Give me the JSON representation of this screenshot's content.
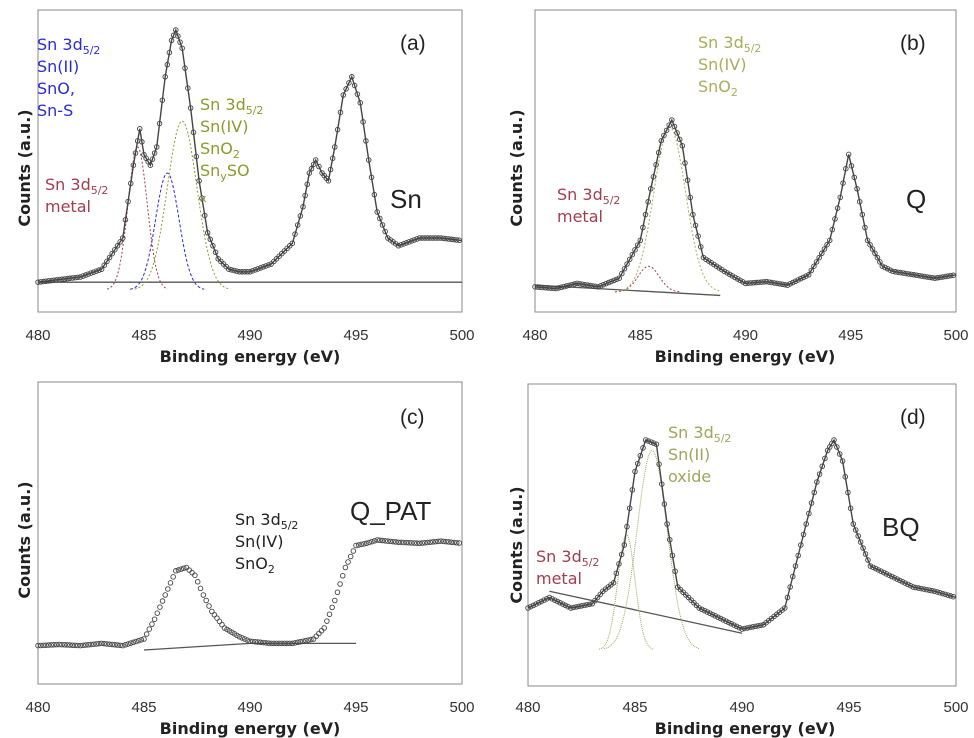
{
  "colors": {
    "metal": "#a23d4e",
    "sn2": "#2b2bd6",
    "sn4": "#8c9a2c",
    "sn4_light": "#a8ad5a",
    "sn2_oxide_light": "#9ea65c",
    "black": "#222222",
    "marker_edge": "#444444",
    "background_line": "#555555"
  },
  "chart_data": [
    {
      "id": "a",
      "type": "line",
      "panel_label": "(a)",
      "sample": "Sn",
      "xlabel": "Binding energy (eV)",
      "ylabel": "Counts (a.u.)",
      "xlim": [
        480,
        500
      ],
      "xticks": [
        "480",
        "485",
        "490",
        "495",
        "500"
      ],
      "grid": false,
      "series": [
        {
          "role": "measured",
          "x": [
            480,
            481,
            482,
            483,
            484,
            484.5,
            484.8,
            485.0,
            485.3,
            485.6,
            486.0,
            486.3,
            486.5,
            486.8,
            487.2,
            487.6,
            488.0,
            488.5,
            489.0,
            489.5,
            490,
            491,
            492,
            492.5,
            492.8,
            493.1,
            493.4,
            493.7,
            494.0,
            494.4,
            494.8,
            495.2,
            495.6,
            496.0,
            496.5,
            497,
            498,
            499,
            500
          ],
          "y": [
            0.03,
            0.04,
            0.05,
            0.08,
            0.2,
            0.48,
            0.62,
            0.52,
            0.48,
            0.55,
            0.82,
            0.96,
            1.0,
            0.93,
            0.7,
            0.42,
            0.22,
            0.12,
            0.08,
            0.07,
            0.07,
            0.1,
            0.18,
            0.32,
            0.45,
            0.5,
            0.45,
            0.42,
            0.55,
            0.75,
            0.82,
            0.72,
            0.5,
            0.3,
            0.2,
            0.17,
            0.2,
            0.2,
            0.19
          ]
        },
        {
          "role": "component",
          "label": "Sn 3d5/2 metal",
          "center": 484.7,
          "height": 0.55,
          "width": 0.45
        },
        {
          "role": "component",
          "label": "Sn 3d5/2 Sn(II)",
          "center": 486.1,
          "height": 0.45,
          "width": 0.55
        },
        {
          "role": "component",
          "label": "Sn 3d5/2 Sn(IV)",
          "center": 486.8,
          "height": 0.65,
          "width": 0.7
        },
        {
          "role": "background",
          "x": [
            480,
            500
          ],
          "y": [
            0.03,
            0.03
          ]
        }
      ],
      "annotations": [
        {
          "color": "sn2",
          "lines": [
            [
              "Sn 3d",
              "5/2",
              ""
            ],
            [
              "Sn(II)",
              "",
              ""
            ],
            [
              "SnO,",
              "",
              ""
            ],
            [
              "Sn-S",
              "",
              ""
            ]
          ]
        },
        {
          "color": "sn4",
          "lines": [
            [
              "Sn 3d",
              "5/2",
              ""
            ],
            [
              "Sn(IV)",
              "",
              ""
            ],
            [
              "SnO",
              "2",
              ""
            ],
            [
              "Sn",
              "y",
              "SO"
            ],
            [
              "",
              "x",
              ""
            ]
          ]
        },
        {
          "color": "metal",
          "lines": [
            [
              "Sn 3d",
              "5/2",
              ""
            ],
            [
              "metal",
              "",
              ""
            ]
          ]
        }
      ]
    },
    {
      "id": "b",
      "type": "line",
      "panel_label": "(b)",
      "sample": "Q",
      "xlabel": "Binding energy (eV)",
      "ylabel": "Counts (a.u.)",
      "xlim": [
        480,
        500
      ],
      "xticks": [
        "480",
        "485",
        "490",
        "495",
        "500"
      ],
      "grid": false,
      "series": [
        {
          "role": "measured",
          "x": [
            480,
            481,
            482,
            483,
            484,
            485,
            485.5,
            486.0,
            486.5,
            487.0,
            487.5,
            488,
            489,
            490,
            491,
            492,
            493,
            494,
            494.5,
            494.9,
            495.3,
            495.8,
            496.5,
            497,
            498,
            499,
            500
          ],
          "y": [
            0.03,
            0.02,
            0.05,
            0.03,
            0.08,
            0.3,
            0.6,
            0.88,
            1.0,
            0.85,
            0.45,
            0.2,
            0.12,
            0.05,
            0.06,
            0.04,
            0.1,
            0.3,
            0.55,
            0.8,
            0.6,
            0.3,
            0.15,
            0.12,
            0.1,
            0.08,
            0.1
          ]
        },
        {
          "role": "component",
          "label": "Sn 3d5/2 metal",
          "center": 485.4,
          "height": 0.15,
          "width": 0.5
        },
        {
          "role": "component",
          "label": "Sn 3d5/2 Sn(IV)",
          "center": 486.4,
          "height": 0.96,
          "width": 0.75
        },
        {
          "role": "background",
          "x": [
            480,
            488.8
          ],
          "y": [
            0.04,
            -0.02
          ]
        }
      ],
      "annotations": [
        {
          "color": "sn4_light",
          "lines": [
            [
              "Sn 3d",
              "5/2",
              ""
            ],
            [
              "Sn(IV)",
              "",
              ""
            ],
            [
              "SnO",
              "2",
              ""
            ]
          ]
        },
        {
          "color": "metal",
          "lines": [
            [
              "Sn 3d",
              "5/2",
              ""
            ],
            [
              "metal",
              "",
              ""
            ]
          ]
        }
      ]
    },
    {
      "id": "c",
      "type": "scatter",
      "panel_label": "(c)",
      "sample": "Q_PAT",
      "xlabel": "Binding energy (eV)",
      "ylabel": "Counts (a.u.)",
      "xlim": [
        480,
        500
      ],
      "xticks": [
        "480",
        "485",
        "490",
        "495",
        "500"
      ],
      "grid": false,
      "series": [
        {
          "role": "measured",
          "x": [
            480,
            481,
            482,
            483,
            484,
            485,
            485.5,
            486.0,
            486.5,
            487.0,
            487.4,
            487.8,
            488.2,
            488.8,
            489.5,
            490,
            491,
            492,
            493,
            493.5,
            494,
            494.5,
            495,
            495.5,
            496,
            497,
            498,
            499,
            500
          ],
          "y": [
            0.04,
            0.05,
            0.04,
            0.06,
            0.04,
            0.1,
            0.28,
            0.5,
            0.72,
            0.75,
            0.68,
            0.5,
            0.35,
            0.2,
            0.12,
            0.08,
            0.06,
            0.06,
            0.1,
            0.2,
            0.45,
            0.75,
            0.95,
            0.97,
            1.0,
            0.98,
            0.97,
            0.99,
            0.97
          ]
        },
        {
          "role": "background",
          "x": [
            485,
            490,
            495
          ],
          "y": [
            0.0,
            0.06,
            0.06
          ]
        }
      ],
      "annotations": [
        {
          "color": "black",
          "lines": [
            [
              "Sn 3d",
              "5/2",
              ""
            ],
            [
              "Sn(IV)",
              "",
              ""
            ],
            [
              "SnO",
              "2",
              ""
            ]
          ]
        }
      ]
    },
    {
      "id": "d",
      "type": "line",
      "panel_label": "(d)",
      "sample": "BQ",
      "xlabel": "Binding energy (eV)",
      "ylabel": "Counts (a.u.)",
      "xlim": [
        480,
        500
      ],
      "xticks": [
        "480",
        "485",
        "490",
        "495",
        "500"
      ],
      "grid": false,
      "series": [
        {
          "role": "measured",
          "x": [
            480,
            481,
            482,
            483,
            483.5,
            484,
            484.5,
            485.0,
            485.5,
            486.0,
            486.5,
            487.0,
            487.5,
            488,
            489,
            490,
            491,
            492,
            492.5,
            493,
            493.5,
            494.0,
            494.3,
            494.7,
            495.2,
            496,
            497,
            498,
            499,
            500
          ],
          "y": [
            0.2,
            0.25,
            0.2,
            0.22,
            0.28,
            0.32,
            0.5,
            0.85,
            1.0,
            0.98,
            0.6,
            0.3,
            0.25,
            0.2,
            0.15,
            0.1,
            0.12,
            0.2,
            0.4,
            0.6,
            0.8,
            0.95,
            1.0,
            0.9,
            0.6,
            0.4,
            0.35,
            0.3,
            0.28,
            0.25
          ]
        },
        {
          "role": "component",
          "label": "Sn 3d5/2 metal",
          "center": 484.6,
          "height": 0.55,
          "width": 0.4
        },
        {
          "role": "component",
          "label": "Sn 3d5/2 Sn(II)",
          "center": 485.8,
          "height": 0.95,
          "width": 0.7
        },
        {
          "role": "background",
          "x": [
            481,
            490
          ],
          "y": [
            0.28,
            0.08
          ]
        }
      ],
      "annotations": [
        {
          "color": "sn2_oxide_light",
          "lines": [
            [
              "Sn 3d",
              "5/2",
              ""
            ],
            [
              "Sn(II)",
              "",
              ""
            ],
            [
              "oxide",
              "",
              ""
            ]
          ]
        },
        {
          "color": "metal",
          "lines": [
            [
              "Sn 3d",
              "5/2",
              ""
            ],
            [
              "metal",
              "",
              ""
            ]
          ]
        }
      ]
    }
  ]
}
